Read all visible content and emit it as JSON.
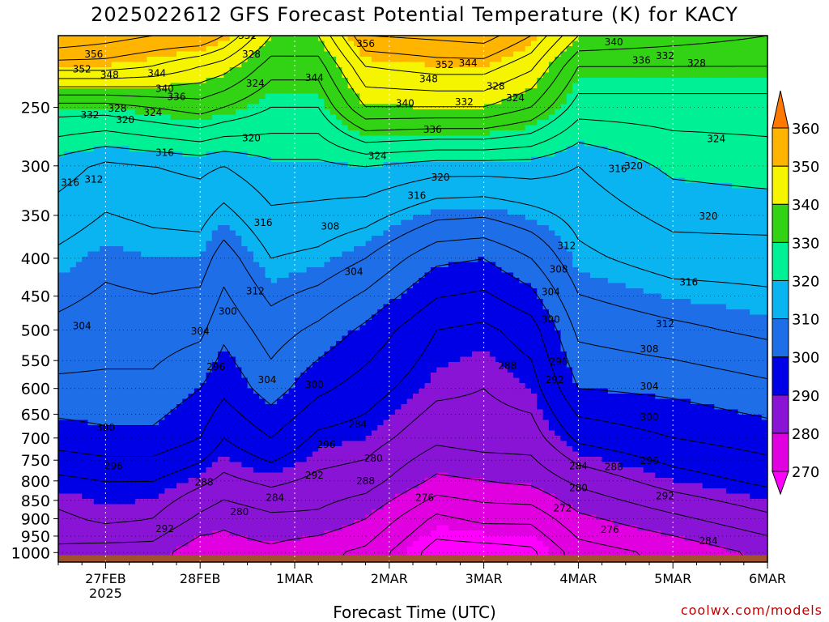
{
  "title": "2025022612 GFS Forecast Potential Temperature (K) for KACY",
  "credit": "coolwx.com/models",
  "chart_data": {
    "type": "heatmap",
    "title": "2025022612 GFS Forecast Potential Temperature (K) for KACY",
    "xlabel": "Forecast Time (UTC)",
    "ylabel": "",
    "x_ticks": [
      {
        "label": "27FEB",
        "sub": "2025",
        "t": 12
      },
      {
        "label": "28FEB",
        "sub": "",
        "t": 36
      },
      {
        "label": "1MAR",
        "sub": "",
        "t": 60
      },
      {
        "label": "2MAR",
        "sub": "",
        "t": 84
      },
      {
        "label": "3MAR",
        "sub": "",
        "t": 108
      },
      {
        "label": "4MAR",
        "sub": "",
        "t": 132
      },
      {
        "label": "5MAR",
        "sub": "",
        "t": 156
      },
      {
        "label": "6MAR",
        "sub": "",
        "t": 180
      }
    ],
    "y_ticks": [
      250,
      300,
      350,
      400,
      450,
      500,
      550,
      600,
      650,
      700,
      750,
      800,
      850,
      900,
      950,
      1000
    ],
    "y_range_hpa": [
      200,
      1030
    ],
    "x_range_hours": [
      0,
      180
    ],
    "colorbar": {
      "ticks": [
        270,
        280,
        290,
        300,
        310,
        320,
        330,
        340,
        350,
        360
      ],
      "bins": [
        {
          "from": 260,
          "to": 270,
          "color": "#ff00ff"
        },
        {
          "from": 270,
          "to": 280,
          "color": "#e000e0"
        },
        {
          "from": 280,
          "to": 290,
          "color": "#8a14d6"
        },
        {
          "from": 290,
          "to": 300,
          "color": "#0000e6"
        },
        {
          "from": 300,
          "to": 310,
          "color": "#1e6ee8"
        },
        {
          "from": 310,
          "to": 320,
          "color": "#0ab4f0"
        },
        {
          "from": 320,
          "to": 330,
          "color": "#00f096"
        },
        {
          "from": 330,
          "to": 340,
          "color": "#32d214"
        },
        {
          "from": 340,
          "to": 350,
          "color": "#f5f500"
        },
        {
          "from": 350,
          "to": 360,
          "color": "#ffb400"
        },
        {
          "from": 360,
          "to": 370,
          "color": "#ff7800"
        }
      ]
    },
    "contour_interval_k": 4,
    "profiles": [
      {
        "t": 0,
        "levels": [
          [
            1000,
            283
          ],
          [
            900,
            287
          ],
          [
            800,
            291
          ],
          [
            700,
            298
          ],
          [
            600,
            303
          ],
          [
            500,
            307
          ],
          [
            400,
            311
          ],
          [
            300,
            318
          ],
          [
            250,
            330
          ],
          [
            220,
            350
          ],
          [
            200,
            360
          ]
        ]
      },
      {
        "t": 12,
        "levels": [
          [
            1000,
            282
          ],
          [
            900,
            289
          ],
          [
            800,
            292
          ],
          [
            700,
            299
          ],
          [
            600,
            303
          ],
          [
            500,
            306
          ],
          [
            400,
            309
          ],
          [
            300,
            315
          ],
          [
            250,
            330
          ],
          [
            220,
            350
          ],
          [
            200,
            358
          ]
        ]
      },
      {
        "t": 24,
        "levels": [
          [
            1000,
            282
          ],
          [
            900,
            288
          ],
          [
            800,
            292
          ],
          [
            700,
            299
          ],
          [
            600,
            303
          ],
          [
            500,
            306
          ],
          [
            400,
            310
          ],
          [
            300,
            316
          ],
          [
            250,
            332
          ],
          [
            220,
            348
          ],
          [
            200,
            356
          ]
        ]
      },
      {
        "t": 36,
        "levels": [
          [
            1000,
            277
          ],
          [
            900,
            283
          ],
          [
            800,
            289
          ],
          [
            700,
            296
          ],
          [
            600,
            300
          ],
          [
            500,
            305
          ],
          [
            400,
            310
          ],
          [
            300,
            317
          ],
          [
            250,
            334
          ],
          [
            220,
            344
          ],
          [
            200,
            356
          ]
        ]
      },
      {
        "t": 42,
        "levels": [
          [
            1000,
            278
          ],
          [
            900,
            281
          ],
          [
            800,
            287
          ],
          [
            700,
            292
          ],
          [
            600,
            297
          ],
          [
            500,
            301
          ],
          [
            400,
            306
          ],
          [
            300,
            316
          ],
          [
            250,
            332
          ],
          [
            220,
            342
          ],
          [
            200,
            352
          ]
        ]
      },
      {
        "t": 54,
        "levels": [
          [
            1000,
            279
          ],
          [
            900,
            283
          ],
          [
            800,
            289
          ],
          [
            700,
            296
          ],
          [
            600,
            302
          ],
          [
            500,
            306
          ],
          [
            400,
            312
          ],
          [
            300,
            319
          ],
          [
            250,
            328
          ],
          [
            220,
            334
          ],
          [
            200,
            340
          ]
        ]
      },
      {
        "t": 66,
        "levels": [
          [
            1000,
            277
          ],
          [
            900,
            283
          ],
          [
            800,
            287
          ],
          [
            700,
            291
          ],
          [
            600,
            297
          ],
          [
            500,
            303
          ],
          [
            400,
            311
          ],
          [
            300,
            319
          ],
          [
            250,
            328
          ],
          [
            220,
            334
          ],
          [
            200,
            340
          ]
        ]
      },
      {
        "t": 78,
        "levels": [
          [
            1000,
            275
          ],
          [
            900,
            280
          ],
          [
            800,
            286
          ],
          [
            700,
            290
          ],
          [
            600,
            294
          ],
          [
            500,
            299
          ],
          [
            400,
            308
          ],
          [
            300,
            320
          ],
          [
            250,
            340
          ],
          [
            220,
            348
          ],
          [
            200,
            356
          ]
        ]
      },
      {
        "t": 96,
        "levels": [
          [
            1000,
            266
          ],
          [
            900,
            271
          ],
          [
            800,
            279
          ],
          [
            700,
            285
          ],
          [
            600,
            289
          ],
          [
            500,
            292
          ],
          [
            400,
            301
          ],
          [
            300,
            318
          ],
          [
            250,
            340
          ],
          [
            220,
            350
          ],
          [
            200,
            357
          ]
        ]
      },
      {
        "t": 108,
        "levels": [
          [
            1000,
            266
          ],
          [
            900,
            273
          ],
          [
            800,
            280
          ],
          [
            700,
            286
          ],
          [
            600,
            288
          ],
          [
            500,
            291
          ],
          [
            400,
            300
          ],
          [
            300,
            318
          ],
          [
            250,
            340
          ],
          [
            220,
            350
          ],
          [
            200,
            358
          ]
        ]
      },
      {
        "t": 120,
        "levels": [
          [
            1000,
            267
          ],
          [
            900,
            273
          ],
          [
            800,
            281
          ],
          [
            700,
            286
          ],
          [
            600,
            290
          ],
          [
            500,
            294
          ],
          [
            400,
            304
          ],
          [
            300,
            318
          ],
          [
            250,
            336
          ],
          [
            220,
            345
          ],
          [
            200,
            352
          ]
        ]
      },
      {
        "t": 132,
        "levels": [
          [
            1000,
            274
          ],
          [
            900,
            279
          ],
          [
            800,
            285
          ],
          [
            700,
            293
          ],
          [
            600,
            300
          ],
          [
            500,
            305
          ],
          [
            400,
            311
          ],
          [
            300,
            316
          ],
          [
            250,
            326
          ],
          [
            220,
            332
          ],
          [
            200,
            340
          ]
        ]
      },
      {
        "t": 156,
        "levels": [
          [
            1000,
            277
          ],
          [
            900,
            283
          ],
          [
            800,
            290
          ],
          [
            700,
            296
          ],
          [
            600,
            301
          ],
          [
            500,
            307
          ],
          [
            400,
            314
          ],
          [
            300,
            321
          ],
          [
            250,
            326
          ],
          [
            220,
            332
          ],
          [
            200,
            338
          ]
        ]
      },
      {
        "t": 180,
        "levels": [
          [
            1000,
            281
          ],
          [
            900,
            287
          ],
          [
            800,
            293
          ],
          [
            700,
            298
          ],
          [
            600,
            303
          ],
          [
            500,
            309
          ],
          [
            400,
            314
          ],
          [
            300,
            322
          ],
          [
            250,
            326
          ],
          [
            220,
            332
          ],
          [
            200,
            336
          ]
        ]
      }
    ],
    "contour_labels": [
      {
        "text": "356",
        "t": 9,
        "p": 212
      },
      {
        "text": "352",
        "t": 6,
        "p": 222
      },
      {
        "text": "348",
        "t": 13,
        "p": 226
      },
      {
        "text": "344",
        "t": 25,
        "p": 225
      },
      {
        "text": "340",
        "t": 27,
        "p": 236
      },
      {
        "text": "336",
        "t": 30,
        "p": 242
      },
      {
        "text": "332",
        "t": 8,
        "p": 256
      },
      {
        "text": "328",
        "t": 15,
        "p": 251
      },
      {
        "text": "320",
        "t": 17,
        "p": 260
      },
      {
        "text": "324",
        "t": 24,
        "p": 254
      },
      {
        "text": "316",
        "t": 27,
        "p": 288
      },
      {
        "text": "316",
        "t": 3,
        "p": 316
      },
      {
        "text": "312",
        "t": 9,
        "p": 313
      },
      {
        "text": "332",
        "t": 48,
        "p": 200
      },
      {
        "text": "328",
        "t": 49,
        "p": 212
      },
      {
        "text": "324",
        "t": 50,
        "p": 232
      },
      {
        "text": "320",
        "t": 49,
        "p": 275
      },
      {
        "text": "344",
        "t": 65,
        "p": 228
      },
      {
        "text": "356",
        "t": 78,
        "p": 205
      },
      {
        "text": "348",
        "t": 94,
        "p": 229
      },
      {
        "text": "352",
        "t": 98,
        "p": 219
      },
      {
        "text": "340",
        "t": 88,
        "p": 247
      },
      {
        "text": "336",
        "t": 95,
        "p": 268
      },
      {
        "text": "324",
        "t": 81,
        "p": 291
      },
      {
        "text": "320",
        "t": 97,
        "p": 311
      },
      {
        "text": "316",
        "t": 91,
        "p": 329
      },
      {
        "text": "316",
        "t": 52,
        "p": 358
      },
      {
        "text": "308",
        "t": 69,
        "p": 362
      },
      {
        "text": "304",
        "t": 75,
        "p": 417
      },
      {
        "text": "312",
        "t": 50,
        "p": 443
      },
      {
        "text": "344",
        "t": 104,
        "p": 218
      },
      {
        "text": "332",
        "t": 103,
        "p": 246
      },
      {
        "text": "328",
        "t": 111,
        "p": 234
      },
      {
        "text": "324",
        "t": 116,
        "p": 243
      },
      {
        "text": "340",
        "t": 141,
        "p": 204
      },
      {
        "text": "336",
        "t": 148,
        "p": 216
      },
      {
        "text": "332",
        "t": 154,
        "p": 213
      },
      {
        "text": "328",
        "t": 162,
        "p": 218
      },
      {
        "text": "324",
        "t": 167,
        "p": 276
      },
      {
        "text": "320",
        "t": 146,
        "p": 300
      },
      {
        "text": "316",
        "t": 142,
        "p": 303
      },
      {
        "text": "320",
        "t": 165,
        "p": 351
      },
      {
        "text": "312",
        "t": 129,
        "p": 385
      },
      {
        "text": "308",
        "t": 127,
        "p": 414
      },
      {
        "text": "304",
        "t": 125,
        "p": 444
      },
      {
        "text": "316",
        "t": 160,
        "p": 431
      },
      {
        "text": "312",
        "t": 154,
        "p": 491
      },
      {
        "text": "300",
        "t": 125,
        "p": 484
      },
      {
        "text": "296",
        "t": 127,
        "p": 552
      },
      {
        "text": "292",
        "t": 126,
        "p": 584
      },
      {
        "text": "308",
        "t": 150,
        "p": 531
      },
      {
        "text": "304",
        "t": 150,
        "p": 596
      },
      {
        "text": "300",
        "t": 150,
        "p": 656
      },
      {
        "text": "296",
        "t": 150,
        "p": 752
      },
      {
        "text": "292",
        "t": 154,
        "p": 839
      },
      {
        "text": "284",
        "t": 165,
        "p": 965
      },
      {
        "text": "288",
        "t": 114,
        "p": 559
      },
      {
        "text": "284",
        "t": 76,
        "p": 671
      },
      {
        "text": "280",
        "t": 80,
        "p": 746
      },
      {
        "text": "276",
        "t": 93,
        "p": 843
      },
      {
        "text": "272",
        "t": 128,
        "p": 871
      },
      {
        "text": "280",
        "t": 132,
        "p": 818
      },
      {
        "text": "284",
        "t": 132,
        "p": 764
      },
      {
        "text": "288",
        "t": 141,
        "p": 766
      },
      {
        "text": "276",
        "t": 140,
        "p": 931
      },
      {
        "text": "304",
        "t": 6,
        "p": 494
      },
      {
        "text": "304",
        "t": 36,
        "p": 502
      },
      {
        "text": "300",
        "t": 43,
        "p": 472
      },
      {
        "text": "296",
        "t": 40,
        "p": 561
      },
      {
        "text": "304",
        "t": 53,
        "p": 584
      },
      {
        "text": "300",
        "t": 65,
        "p": 593
      },
      {
        "text": "300",
        "t": 12,
        "p": 678
      },
      {
        "text": "296",
        "t": 14,
        "p": 764
      },
      {
        "text": "288",
        "t": 37,
        "p": 803
      },
      {
        "text": "284",
        "t": 55,
        "p": 843
      },
      {
        "text": "280",
        "t": 46,
        "p": 881
      },
      {
        "text": "296",
        "t": 68,
        "p": 715
      },
      {
        "text": "292",
        "t": 65,
        "p": 786
      },
      {
        "text": "288",
        "t": 78,
        "p": 800
      },
      {
        "text": "292",
        "t": 27,
        "p": 929
      }
    ]
  }
}
